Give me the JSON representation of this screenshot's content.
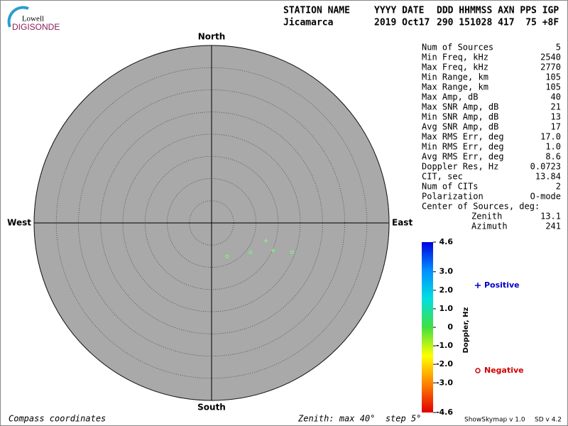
{
  "logo": {
    "top": "Lowell",
    "bottom": "DIGISONDE"
  },
  "header": {
    "columns": [
      "STATION NAME",
      "YYYY DATE",
      "DDD HHMMSS AXN PPS IGP"
    ],
    "row": [
      "Jicamarca",
      "2019 Oct17",
      "290 151028 417  75 +8F"
    ]
  },
  "chart_data": {
    "type": "polar_scatter",
    "directions": {
      "north": "North",
      "south": "South",
      "east": "East",
      "west": "West"
    },
    "rlim": [
      0,
      40
    ],
    "rticks": [
      5,
      10,
      15,
      20,
      25,
      30,
      35,
      40
    ],
    "series": [
      {
        "name": "Positive",
        "marker": "plus",
        "color": "#7CFC7C",
        "legend_color": "#0000C8",
        "zenith": [
          12.9,
          15.2
        ],
        "azimuth": [
          108,
          114
        ]
      },
      {
        "name": "Negative",
        "marker": "circle",
        "color": "#7CFC7C",
        "legend_color": "#D00000",
        "zenith": [
          8.3,
          11.0,
          19.3
        ],
        "azimuth": [
          155,
          127,
          110
        ]
      }
    ],
    "colorbar": {
      "label": "Doppler, Hz",
      "lim": [
        -4.6,
        4.6
      ],
      "colors": [
        "#E00000",
        "#FF8000",
        "#FFFF00",
        "#40E040",
        "#00E0E0",
        "#0090FF",
        "#0000E0"
      ],
      "ticks": [
        4.6,
        {
          "value": 3,
          "label": "3.0"
        },
        {
          "value": 2,
          "label": "2.0"
        },
        {
          "value": 1,
          "label": "1.0"
        },
        0,
        {
          "value": -1,
          "label": "-1.0"
        },
        {
          "value": -2,
          "label": "-2.0"
        },
        {
          "value": -3,
          "label": "-3.0"
        },
        -4.6
      ]
    }
  },
  "stats": {
    "rows": [
      [
        "Num of Sources",
        "5"
      ],
      [
        "Min Freq, kHz",
        "2540"
      ],
      [
        "Max Freq, kHz",
        "2770"
      ],
      [
        "Min Range, km",
        "105"
      ],
      [
        "Max Range, km",
        "105"
      ],
      [
        "Max Amp, dB",
        "40"
      ],
      [
        "Max SNR Amp, dB",
        "21"
      ],
      [
        "Min SNR Amp, dB",
        "13"
      ],
      [
        "Avg SNR Amp, dB",
        "17"
      ],
      [
        "Max RMS Err, deg",
        "17.0"
      ],
      [
        "Min RMS Err, deg",
        "1.0"
      ],
      [
        "Avg RMS Err, deg",
        "8.6"
      ],
      [
        "Doppler Res, Hz",
        "0.0723"
      ],
      [
        "CIT, sec",
        "13.84"
      ],
      [
        "Num of CITs",
        "2"
      ],
      [
        "Polarization",
        "O-mode"
      ]
    ],
    "center_title": "Center of Sources, deg:",
    "center_rows": [
      [
        "Zenith",
        "13.1"
      ],
      [
        "Azimuth",
        "241"
      ]
    ]
  },
  "footer": {
    "left": "Compass coordinates",
    "middle": "Zenith: max 40°  step 5°",
    "version": "ShowSkymap v 1.0",
    "sd": "SD v 4.2"
  }
}
